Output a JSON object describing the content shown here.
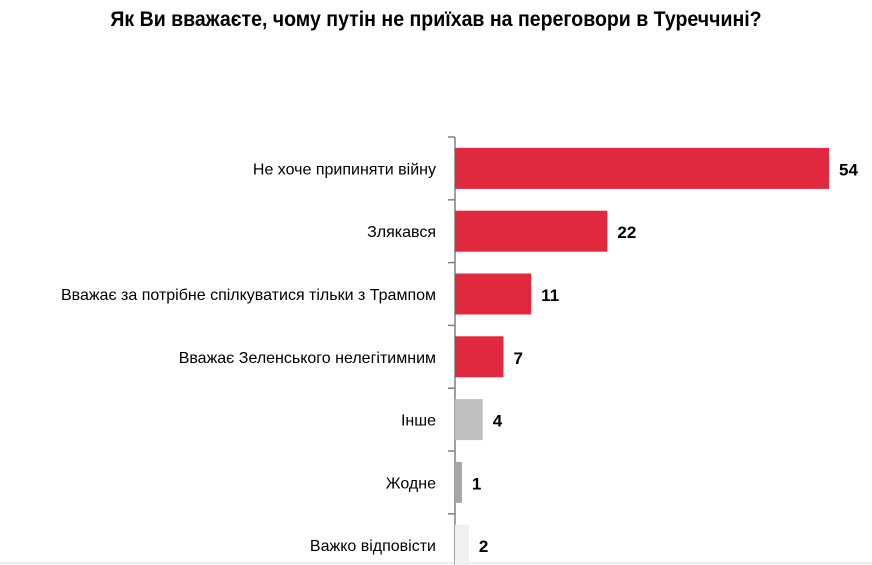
{
  "chart_data": {
    "type": "bar",
    "orientation": "horizontal",
    "title": "Як Ви вважаєте, чому путін не приїхав на переговори в Туреччині?",
    "categories": [
      "Не хоче припиняти війну",
      "Злякався",
      "Вважає за потрібне спілкуватися тільки з Трампом",
      "Вважає Зеленського нелегітимним",
      "Інше",
      "Жодне",
      "Важко відповісти"
    ],
    "values": [
      54,
      22,
      11,
      7,
      4,
      1,
      2
    ],
    "colors": [
      "#e0283f",
      "#e0283f",
      "#e0283f",
      "#e0283f",
      "#bfbfbf",
      "#a6a6a6",
      "#f0f0f0"
    ],
    "xlim": [
      0,
      56
    ],
    "grid": false,
    "data_labels": true
  }
}
